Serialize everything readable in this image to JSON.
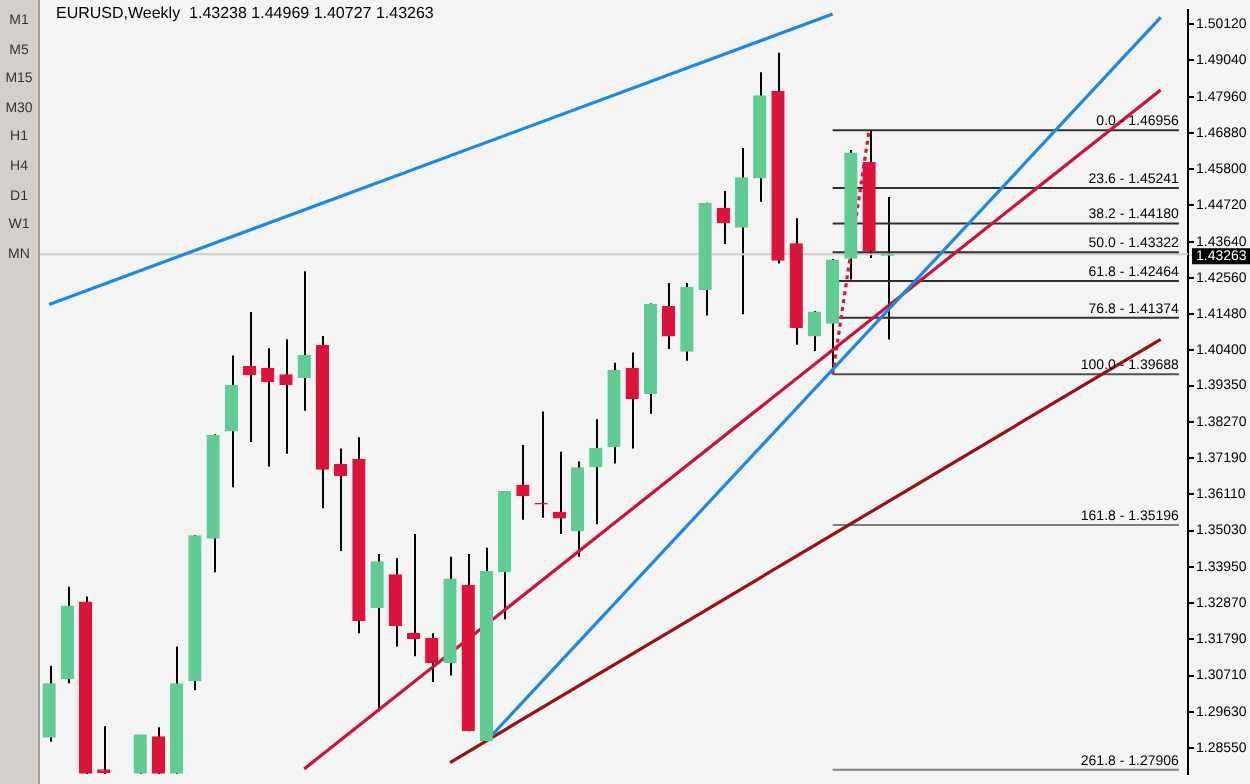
{
  "chart_data": {
    "type": "candlestick",
    "title": "EURUSD,Weekly  1.43238 1.44969 1.40727 1.43263",
    "annotations": [
      "M1",
      "M5",
      "M15",
      "M30",
      "H1",
      "H4",
      "D1",
      "W1",
      "MN"
    ],
    "categories": [
      null,
      null,
      null,
      null,
      null,
      null,
      null,
      null,
      null,
      null,
      null,
      null,
      null,
      null,
      null,
      null,
      null,
      null,
      null,
      null,
      null,
      null,
      null,
      null,
      null,
      null,
      null,
      null,
      null,
      null,
      null,
      null,
      null,
      null,
      null,
      null,
      null,
      null,
      null,
      null,
      null,
      null,
      null,
      null,
      null,
      null,
      null,
      null,
      null,
      null,
      null,
      null,
      null,
      null,
      null,
      null,
      null,
      null,
      null,
      null,
      null,
      null,
      null
    ],
    "ohlc": [
      [
        1.2888,
        1.31,
        1.2874,
        1.3046
      ],
      [
        1.3062,
        1.3336,
        1.3048,
        1.3278
      ],
      [
        1.329,
        1.3307,
        1.2778,
        1.278
      ],
      [
        1.279,
        1.292,
        1.2778,
        1.2782
      ],
      null,
      [
        1.278,
        1.2894,
        1.2778,
        1.2894
      ],
      [
        1.2888,
        1.2917,
        1.2778,
        1.278
      ],
      [
        1.278,
        1.3158,
        1.2778,
        1.3046
      ],
      [
        1.3056,
        1.349,
        1.3027,
        1.3487
      ],
      [
        1.3481,
        1.379,
        1.3379,
        1.3787
      ],
      [
        1.38,
        1.4025,
        1.3632,
        1.3935
      ],
      [
        1.3992,
        1.4154,
        1.3767,
        1.3968
      ],
      [
        1.3986,
        1.4046,
        1.3694,
        1.3947
      ],
      [
        1.3967,
        1.4073,
        1.3732,
        1.3938
      ],
      [
        1.3959,
        1.4276,
        1.386,
        1.4025
      ],
      [
        1.4054,
        1.4083,
        1.357,
        1.3686
      ],
      [
        1.37,
        1.3748,
        1.3442,
        1.3667
      ],
      [
        1.3715,
        1.3781,
        1.3197,
        1.3236
      ],
      [
        1.3274,
        1.3433,
        1.2965,
        1.341
      ],
      [
        1.3371,
        1.3421,
        1.3158,
        1.322
      ],
      [
        1.3197,
        1.3493,
        1.3129,
        1.3181
      ],
      [
        1.3181,
        1.3197,
        1.3052,
        1.311
      ],
      [
        1.311,
        1.3425,
        1.3071,
        1.3358
      ],
      [
        1.334,
        1.3433,
        1.2905,
        1.2907
      ],
      [
        1.2878,
        1.3452,
        1.2876,
        1.3381
      ],
      [
        1.3381,
        1.362,
        1.3239,
        1.3619
      ],
      [
        1.3638,
        1.3758,
        1.3535,
        1.3607
      ],
      [
        1.3584,
        1.3858,
        1.3541,
        1.3583
      ],
      [
        1.3557,
        1.3738,
        1.3493,
        1.3541
      ],
      [
        1.3503,
        1.3709,
        1.3425,
        1.369
      ],
      [
        1.3694,
        1.3835,
        1.3522,
        1.3748
      ],
      [
        1.3754,
        1.4003,
        1.3703,
        1.398
      ],
      [
        1.3986,
        1.4034,
        1.3748,
        1.3897
      ],
      [
        1.3912,
        1.418,
        1.3851,
        1.4177
      ],
      [
        1.417,
        1.4241,
        1.4044,
        1.4083
      ],
      [
        1.4038,
        1.4241,
        1.4009,
        1.4228
      ],
      [
        1.4222,
        1.448,
        1.4144,
        1.4477
      ],
      [
        1.4463,
        1.4515,
        1.4357,
        1.4421
      ],
      [
        1.4407,
        1.4643,
        1.4148,
        1.4554
      ],
      [
        1.4554,
        1.4869,
        1.4483,
        1.4798
      ],
      [
        1.4811,
        1.4927,
        1.4299,
        1.4309
      ],
      [
        1.4357,
        1.4434,
        1.4057,
        1.4109
      ],
      [
        1.4083,
        1.4157,
        1.4038,
        1.4154
      ],
      [
        1.4121,
        1.4312,
        1.39688,
        1.4309
      ],
      [
        1.4315,
        1.4637,
        1.4251,
        1.4628
      ],
      [
        1.4599,
        1.46956,
        1.4315,
        1.4338
      ],
      [
        1.43238,
        1.44969,
        1.40727,
        1.43263
      ],
      null,
      null,
      null,
      null,
      null,
      null,
      null,
      null,
      null,
      null,
      null,
      null,
      null,
      null,
      null,
      null
    ],
    "colors": [
      "#60cc94",
      "#60cc94",
      "#dc143c",
      "#dc143c",
      null,
      "#60cc94",
      "#dc143c",
      "#60cc94",
      "#60cc94",
      "#60cc94",
      "#60cc94",
      "#dc143c",
      "#dc143c",
      "#dc143c",
      "#60cc94",
      "#dc143c",
      "#dc143c",
      "#dc143c",
      "#60cc94",
      "#dc143c",
      "#dc143c",
      "#dc143c",
      "#60cc94",
      "#dc143c",
      "#60cc94",
      "#60cc94",
      "#dc143c",
      "#dc143c",
      "#dc143c",
      "#60cc94",
      "#60cc94",
      "#60cc94",
      "#dc143c",
      "#60cc94",
      "#dc143c",
      "#60cc94",
      "#60cc94",
      "#dc143c",
      "#60cc94",
      "#60cc94",
      "#dc143c",
      "#dc143c",
      "#60cc94",
      "#60cc94",
      "#60cc94",
      "#dc143c",
      "#60cc94",
      null,
      null,
      null,
      null,
      null,
      null,
      null,
      null,
      null,
      null,
      null,
      null,
      null,
      null,
      null,
      null
    ],
    "series": [
      {
        "type": "line",
        "color": "#1e88e5",
        "values": [
          1.4177,
          null,
          null,
          null,
          null,
          null,
          null,
          null,
          null,
          null,
          null,
          null,
          null,
          null,
          null,
          null,
          null,
          null,
          null,
          null,
          null,
          null,
          null,
          null,
          null,
          null,
          null,
          null,
          null,
          null,
          null,
          null,
          null,
          null,
          null,
          null,
          null,
          null,
          null,
          null,
          null,
          null,
          null,
          1.5042,
          null,
          null,
          null,
          null,
          null,
          null,
          null,
          null,
          null,
          null,
          null,
          null,
          null,
          null,
          null,
          null,
          null,
          null,
          null
        ]
      },
      {
        "type": "line",
        "color": "#1e88e5",
        "values": [
          null,
          null,
          null,
          null,
          null,
          null,
          null,
          null,
          null,
          null,
          null,
          null,
          null,
          null,
          null,
          null,
          null,
          null,
          null,
          null,
          null,
          null,
          null,
          null,
          1.2876,
          null,
          null,
          null,
          null,
          null,
          null,
          null,
          null,
          null,
          null,
          null,
          null,
          null,
          null,
          null,
          null,
          null,
          null,
          null,
          null,
          null,
          null,
          null,
          null,
          null,
          null,
          null,
          null,
          null,
          null,
          null,
          null,
          null,
          null,
          null,
          null,
          1.5032,
          null
        ]
      },
      {
        "type": "line",
        "color": "#c8143c",
        "values": [
          null,
          null,
          null,
          null,
          null,
          null,
          null,
          null,
          null,
          null,
          null,
          null,
          null,
          null,
          1.2793,
          null,
          null,
          null,
          null,
          null,
          null,
          null,
          null,
          null,
          null,
          null,
          null,
          null,
          null,
          null,
          null,
          null,
          null,
          null,
          null,
          null,
          null,
          null,
          null,
          null,
          null,
          null,
          null,
          null,
          null,
          null,
          null,
          null,
          null,
          null,
          null,
          null,
          null,
          null,
          null,
          null,
          null,
          null,
          null,
          null,
          null,
          1.4816,
          null
        ]
      },
      {
        "type": "line",
        "color": "#9b1010",
        "values": [
          null,
          null,
          null,
          null,
          null,
          null,
          null,
          null,
          null,
          null,
          null,
          null,
          null,
          null,
          null,
          null,
          null,
          null,
          null,
          null,
          null,
          null,
          1.2812,
          null,
          null,
          null,
          null,
          null,
          null,
          null,
          null,
          null,
          null,
          null,
          null,
          null,
          null,
          null,
          null,
          null,
          null,
          null,
          null,
          null,
          null,
          null,
          null,
          null,
          null,
          null,
          null,
          null,
          null,
          null,
          null,
          null,
          null,
          null,
          null,
          null,
          null,
          1.4073,
          null
        ]
      },
      {
        "type": "line",
        "color": "#dc143c",
        "line_style": "dotted",
        "values": [
          null,
          null,
          null,
          null,
          null,
          null,
          null,
          null,
          null,
          null,
          null,
          null,
          null,
          null,
          null,
          null,
          null,
          null,
          null,
          null,
          null,
          null,
          null,
          null,
          null,
          null,
          null,
          null,
          null,
          null,
          null,
          null,
          null,
          null,
          null,
          null,
          null,
          null,
          null,
          null,
          null,
          null,
          null,
          1.39688,
          null,
          1.46956,
          null,
          null,
          null,
          null,
          null,
          null,
          null,
          null,
          null,
          null,
          null,
          null,
          null,
          null,
          null,
          null,
          null
        ]
      },
      {
        "type": "line",
        "name": "0.0 - 1.46956",
        "color": "#303030",
        "values": [
          null,
          null,
          null,
          null,
          null,
          null,
          null,
          null,
          null,
          null,
          null,
          null,
          null,
          null,
          null,
          null,
          null,
          null,
          null,
          null,
          null,
          null,
          null,
          null,
          null,
          null,
          null,
          null,
          null,
          null,
          null,
          null,
          null,
          null,
          null,
          null,
          null,
          null,
          null,
          null,
          null,
          null,
          null,
          1.46956,
          null,
          null,
          null,
          null,
          null,
          null,
          null,
          null,
          null,
          null,
          null,
          null,
          null,
          null,
          null,
          null,
          null,
          null,
          1.46956
        ]
      },
      {
        "type": "line",
        "name": "23.6 - 1.45241",
        "color": "#303030",
        "values": [
          null,
          null,
          null,
          null,
          null,
          null,
          null,
          null,
          null,
          null,
          null,
          null,
          null,
          null,
          null,
          null,
          null,
          null,
          null,
          null,
          null,
          null,
          null,
          null,
          null,
          null,
          null,
          null,
          null,
          null,
          null,
          null,
          null,
          null,
          null,
          null,
          null,
          null,
          null,
          null,
          null,
          null,
          null,
          1.45241,
          null,
          null,
          null,
          null,
          null,
          null,
          null,
          null,
          null,
          null,
          null,
          null,
          null,
          null,
          null,
          null,
          null,
          null,
          1.45241
        ]
      },
      {
        "type": "line",
        "name": "38.2 - 1.44180",
        "color": "#303030",
        "values": [
          null,
          null,
          null,
          null,
          null,
          null,
          null,
          null,
          null,
          null,
          null,
          null,
          null,
          null,
          null,
          null,
          null,
          null,
          null,
          null,
          null,
          null,
          null,
          null,
          null,
          null,
          null,
          null,
          null,
          null,
          null,
          null,
          null,
          null,
          null,
          null,
          null,
          null,
          null,
          null,
          null,
          null,
          null,
          1.4418,
          null,
          null,
          null,
          null,
          null,
          null,
          null,
          null,
          null,
          null,
          null,
          null,
          null,
          null,
          null,
          null,
          null,
          null,
          1.4418
        ]
      },
      {
        "type": "line",
        "name": "50.0 - 1.43322",
        "color": "#303030",
        "values": [
          null,
          null,
          null,
          null,
          null,
          null,
          null,
          null,
          null,
          null,
          null,
          null,
          null,
          null,
          null,
          null,
          null,
          null,
          null,
          null,
          null,
          null,
          null,
          null,
          null,
          null,
          null,
          null,
          null,
          null,
          null,
          null,
          null,
          null,
          null,
          null,
          null,
          null,
          null,
          null,
          null,
          null,
          null,
          1.43322,
          null,
          null,
          null,
          null,
          null,
          null,
          null,
          null,
          null,
          null,
          null,
          null,
          null,
          null,
          null,
          null,
          null,
          null,
          1.43322
        ]
      },
      {
        "type": "line",
        "name": "61.8 - 1.42464",
        "color": "#303030",
        "values": [
          null,
          null,
          null,
          null,
          null,
          null,
          null,
          null,
          null,
          null,
          null,
          null,
          null,
          null,
          null,
          null,
          null,
          null,
          null,
          null,
          null,
          null,
          null,
          null,
          null,
          null,
          null,
          null,
          null,
          null,
          null,
          null,
          null,
          null,
          null,
          null,
          null,
          null,
          null,
          null,
          null,
          null,
          null,
          1.42464,
          null,
          null,
          null,
          null,
          null,
          null,
          null,
          null,
          null,
          null,
          null,
          null,
          null,
          null,
          null,
          null,
          null,
          null,
          1.42464
        ]
      },
      {
        "type": "line",
        "name": "76.8 - 1.41374",
        "color": "#303030",
        "values": [
          null,
          null,
          null,
          null,
          null,
          null,
          null,
          null,
          null,
          null,
          null,
          null,
          null,
          null,
          null,
          null,
          null,
          null,
          null,
          null,
          null,
          null,
          null,
          null,
          null,
          null,
          null,
          null,
          null,
          null,
          null,
          null,
          null,
          null,
          null,
          null,
          null,
          null,
          null,
          null,
          null,
          null,
          null,
          1.41374,
          null,
          null,
          null,
          null,
          null,
          null,
          null,
          null,
          null,
          null,
          null,
          null,
          null,
          null,
          null,
          null,
          null,
          null,
          1.41374
        ]
      },
      {
        "type": "line",
        "name": "100.0 - 1.39688",
        "color": "#505050",
        "values": [
          null,
          null,
          null,
          null,
          null,
          null,
          null,
          null,
          null,
          null,
          null,
          null,
          null,
          null,
          null,
          null,
          null,
          null,
          null,
          null,
          null,
          null,
          null,
          null,
          null,
          null,
          null,
          null,
          null,
          null,
          null,
          null,
          null,
          null,
          null,
          null,
          null,
          null,
          null,
          null,
          null,
          null,
          null,
          1.39688,
          null,
          null,
          null,
          null,
          null,
          null,
          null,
          null,
          null,
          null,
          null,
          null,
          null,
          null,
          null,
          null,
          null,
          null,
          1.39688
        ]
      },
      {
        "type": "line",
        "name": "161.8 - 1.35196",
        "color": "#808080",
        "values": [
          null,
          null,
          null,
          null,
          null,
          null,
          null,
          null,
          null,
          null,
          null,
          null,
          null,
          null,
          null,
          null,
          null,
          null,
          null,
          null,
          null,
          null,
          null,
          null,
          null,
          null,
          null,
          null,
          null,
          null,
          null,
          null,
          null,
          null,
          null,
          null,
          null,
          null,
          null,
          null,
          null,
          null,
          null,
          1.35196,
          null,
          null,
          null,
          null,
          null,
          null,
          null,
          null,
          null,
          null,
          null,
          null,
          null,
          null,
          null,
          null,
          null,
          null,
          1.35196
        ]
      },
      {
        "type": "line",
        "name": "261.8 - 1.27906",
        "color": "#808080",
        "values": [
          null,
          null,
          null,
          null,
          null,
          null,
          null,
          null,
          null,
          null,
          null,
          null,
          null,
          null,
          null,
          null,
          null,
          null,
          null,
          null,
          null,
          null,
          null,
          null,
          null,
          null,
          null,
          null,
          null,
          null,
          null,
          null,
          null,
          null,
          null,
          null,
          null,
          null,
          null,
          null,
          null,
          null,
          null,
          1.27906,
          null,
          null,
          null,
          null,
          null,
          null,
          null,
          null,
          null,
          null,
          null,
          null,
          null,
          null,
          null,
          null,
          null,
          null,
          1.27906
        ]
      }
    ],
    "ref_lines": [
      {
        "axis": "y",
        "value": 1.43263,
        "label": "1.43263",
        "color": "#d0d0d0"
      }
    ],
    "ylim": [
      1.2779,
      1.5053
    ],
    "yticks": [
      {
        "value": 1.5012,
        "label": "1.50120"
      },
      {
        "value": 1.4904,
        "label": "1.49040"
      },
      {
        "value": 1.4796,
        "label": "1.47960"
      },
      {
        "value": 1.4688,
        "label": "1.46880"
      },
      {
        "value": 1.458,
        "label": "1.45800"
      },
      {
        "value": 1.4472,
        "label": "1.44720"
      },
      {
        "value": 1.4364,
        "label": "1.43640"
      },
      {
        "value": 1.4256,
        "label": "1.42560"
      },
      {
        "value": 1.4148,
        "label": "1.41480"
      },
      {
        "value": 1.404,
        "label": "1.40400"
      },
      {
        "value": 1.3935,
        "label": "1.39350"
      },
      {
        "value": 1.3827,
        "label": "1.38270"
      },
      {
        "value": 1.3719,
        "label": "1.37190"
      },
      {
        "value": 1.3611,
        "label": "1.36110"
      },
      {
        "value": 1.3503,
        "label": "1.35030"
      },
      {
        "value": 1.3395,
        "label": "1.33950"
      },
      {
        "value": 1.3287,
        "label": "1.32870"
      },
      {
        "value": 1.3179,
        "label": "1.31790"
      },
      {
        "value": 1.3071,
        "label": "1.30710"
      },
      {
        "value": 1.2963,
        "label": "1.29630"
      },
      {
        "value": 1.2855,
        "label": "1.28550"
      }
    ],
    "tick_labels": "y"
  }
}
